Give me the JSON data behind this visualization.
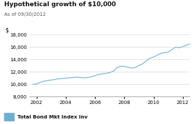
{
  "title": "Hypothetical growth of $10,000",
  "subtitle": "As of 09/30/2012",
  "ylabel": "$",
  "legend_label": "Total Bond Mkt Index Inv",
  "legend_color": "#6ab0d4",
  "line_color": "#6ab0d4",
  "background_color": "#ffffff",
  "ylim": [
    8000,
    18000
  ],
  "yticks": [
    8000,
    10000,
    12000,
    14000,
    16000,
    18000
  ],
  "xticks": [
    2002,
    2004,
    2006,
    2008,
    2010,
    2012
  ],
  "xlim": [
    2001.5,
    2012.5
  ],
  "x": [
    2001.75,
    2002.0,
    2002.25,
    2002.5,
    2002.75,
    2003.0,
    2003.25,
    2003.5,
    2003.75,
    2004.0,
    2004.25,
    2004.5,
    2004.75,
    2005.0,
    2005.25,
    2005.5,
    2005.75,
    2006.0,
    2006.25,
    2006.5,
    2006.75,
    2007.0,
    2007.25,
    2007.5,
    2007.75,
    2008.0,
    2008.1,
    2008.2,
    2008.3,
    2008.4,
    2008.5,
    2008.75,
    2009.0,
    2009.25,
    2009.5,
    2009.75,
    2010.0,
    2010.25,
    2010.5,
    2010.75,
    2011.0,
    2011.25,
    2011.5,
    2011.75,
    2012.0,
    2012.25,
    2012.5
  ],
  "y": [
    10000,
    10050,
    10300,
    10500,
    10600,
    10700,
    10750,
    10900,
    10920,
    11000,
    11050,
    11100,
    11150,
    11100,
    11050,
    11100,
    11200,
    11400,
    11600,
    11700,
    11750,
    11900,
    12100,
    12700,
    12900,
    12900,
    12850,
    12780,
    12700,
    12720,
    12600,
    12700,
    13050,
    13300,
    13800,
    14200,
    14400,
    14700,
    15000,
    15100,
    15200,
    15600,
    16000,
    15900,
    16100,
    16300,
    16550
  ]
}
